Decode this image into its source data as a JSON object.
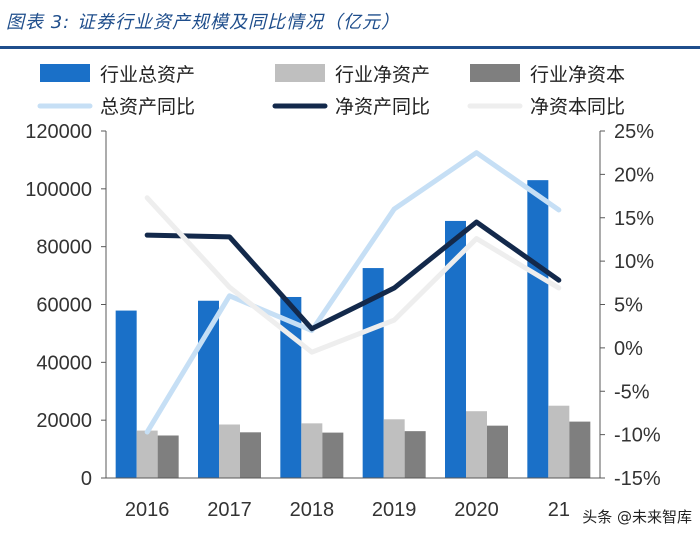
{
  "title": "图表 3:  证券行业资产规模及同比情况（亿元）",
  "watermark": "头条 @未来智库",
  "colors": {
    "total_assets": "#1a70c8",
    "net_assets": "#bfbfbf",
    "net_capital": "#7f7f7f",
    "total_assets_yoy": "#c6dff5",
    "net_assets_yoy": "#13294b",
    "net_capital_yoy": "#eeeeee",
    "axis": "#595959",
    "title": "#1f4e8c"
  },
  "chart_data": {
    "type": "bar",
    "categories": [
      "2016",
      "2017",
      "2018",
      "2019",
      "2020",
      "21"
    ],
    "ylim": [
      0,
      120000
    ],
    "yticks": [
      "0",
      "20000",
      "40000",
      "60000",
      "80000",
      "100000",
      "120000"
    ],
    "y2lim": [
      -15,
      25
    ],
    "y2ticks": [
      "-15%",
      "-10%",
      "-5%",
      "0%",
      "5%",
      "10%",
      "15%",
      "20%",
      "25%"
    ],
    "legend": "top",
    "series": [
      {
        "name": "行业总资产",
        "kind": "bar",
        "axis": "left",
        "color_key": "total_assets",
        "values": [
          57900,
          61300,
          62600,
          72600,
          88900,
          103000
        ]
      },
      {
        "name": "行业净资产",
        "kind": "bar",
        "axis": "left",
        "color_key": "net_assets",
        "values": [
          16400,
          18500,
          18900,
          20300,
          23100,
          25000
        ]
      },
      {
        "name": "行业净资本",
        "kind": "bar",
        "axis": "left",
        "color_key": "net_capital",
        "values": [
          14700,
          15800,
          15700,
          16200,
          18100,
          19500
        ]
      },
      {
        "name": "总资产同比",
        "kind": "line",
        "axis": "right",
        "color_key": "total_assets_yoy",
        "values": [
          -9.7,
          6.0,
          2.0,
          16.0,
          22.5,
          15.9
        ]
      },
      {
        "name": "净资产同比",
        "kind": "line",
        "axis": "right",
        "color_key": "net_assets_yoy",
        "values": [
          13.0,
          12.8,
          2.2,
          6.9,
          14.5,
          7.8
        ]
      },
      {
        "name": "净资本同比",
        "kind": "line",
        "axis": "right",
        "color_key": "net_capital_yoy",
        "values": [
          17.3,
          7.0,
          -0.5,
          3.2,
          12.6,
          6.9
        ]
      }
    ]
  }
}
